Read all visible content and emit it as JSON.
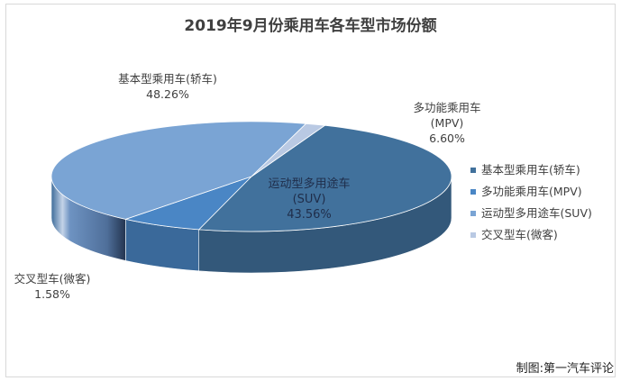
{
  "chart_data": {
    "type": "pie",
    "title": "2019年9月份乘用车各车型市场份额",
    "series": [
      {
        "name": "基本型乘用车(轿车)",
        "value": 48.26,
        "value_label": "48.26%",
        "label_lines": [
          "基本型乘用车(轿车)",
          "48.26%"
        ],
        "color": "#41719c"
      },
      {
        "name": "多功能乘用车(MPV)",
        "value": 6.6,
        "value_label": "6.60%",
        "label_lines": [
          "多功能乘用车",
          "(MPV)",
          "6.60%"
        ],
        "color": "#4a86c5"
      },
      {
        "name": "运动型多用途车(SUV)",
        "value": 43.56,
        "value_label": "43.56%",
        "label_lines": [
          "运动型多用途车",
          "(SUV)",
          "43.56%"
        ],
        "color": "#7aa4d4"
      },
      {
        "name": "交叉型车(微客)",
        "value": 1.58,
        "value_label": "1.58%",
        "label_lines": [
          "交叉型车(微客)",
          "1.58%"
        ],
        "color": "#b9c9e3"
      }
    ],
    "legend_position": "right"
  },
  "credit": "制图:第一汽车评论"
}
